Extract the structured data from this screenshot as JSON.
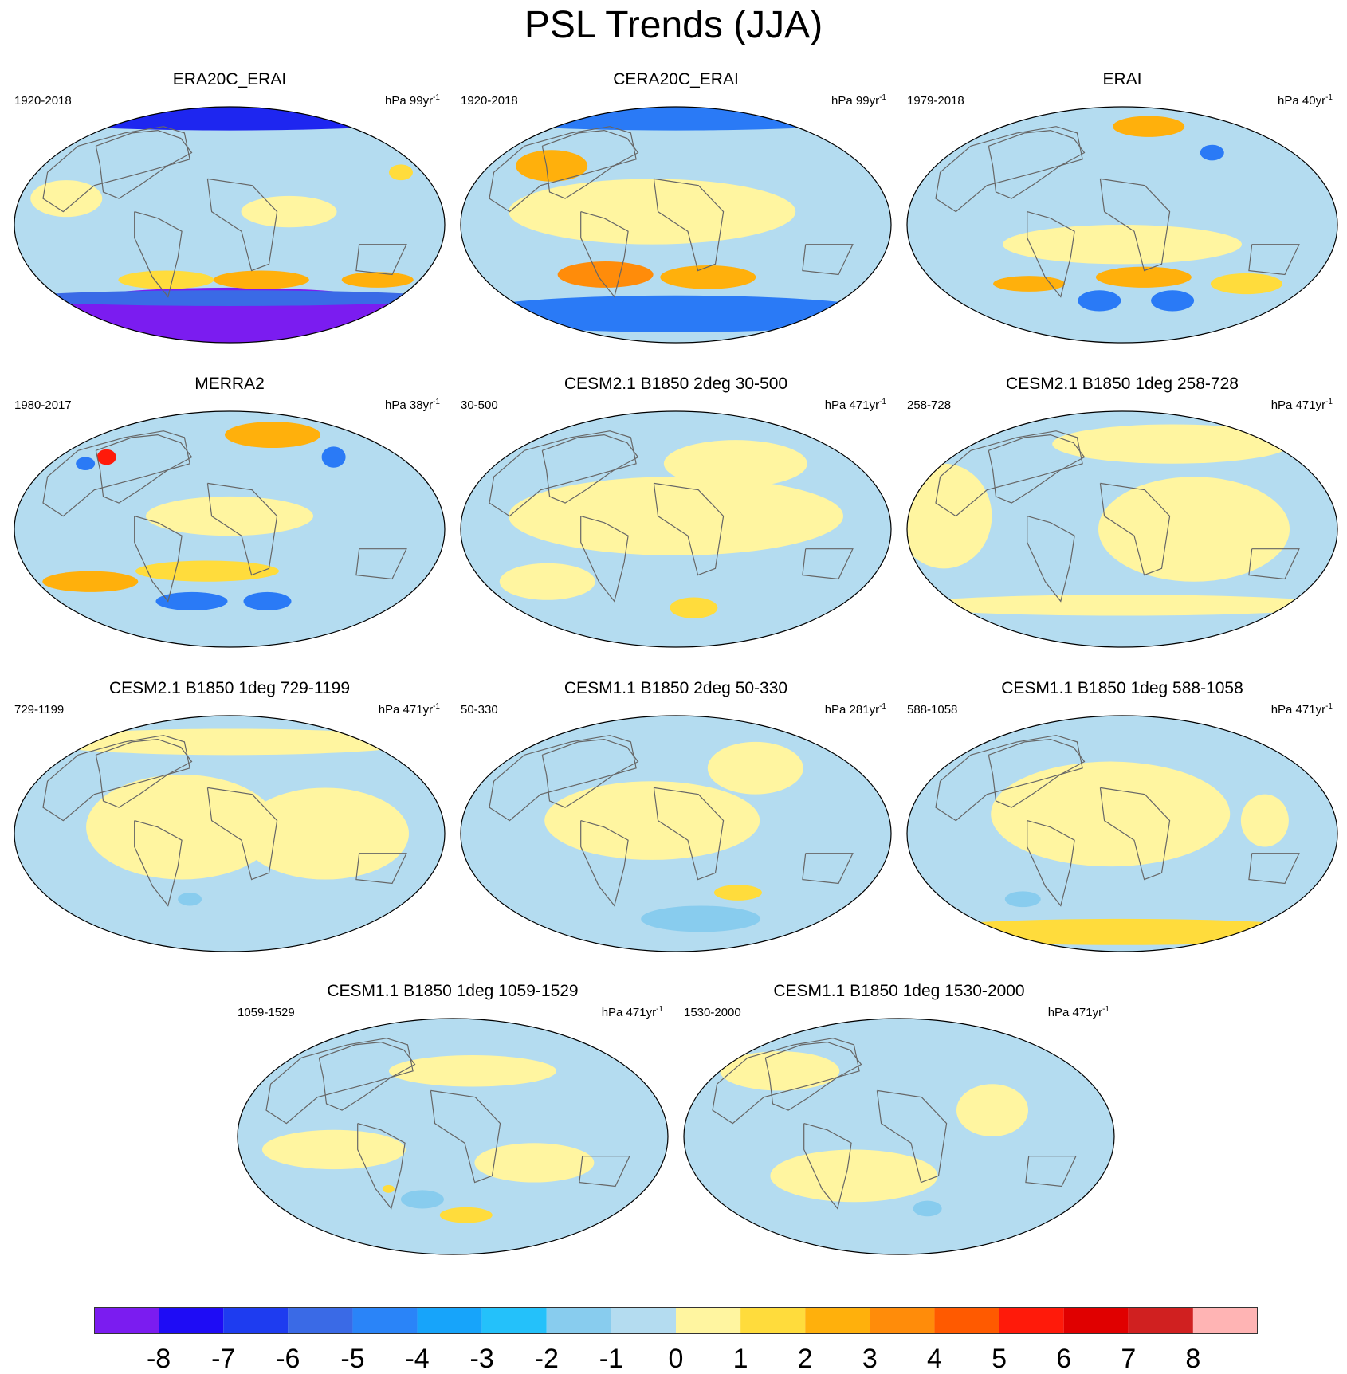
{
  "title": "PSL Trends (JJA)",
  "colors": {
    "ocean_base": "#b4dcf0",
    "continent_line": "#666666",
    "map_border": "#000000"
  },
  "panels": [
    {
      "title": "ERA20C_ERAI",
      "period": "1920-2018",
      "units": "hPa 99yr",
      "exp": "-1",
      "blobs": [
        {
          "lon": 0,
          "lat": 82,
          "rx": 180,
          "ry": 10,
          "color": "#1e26f0"
        },
        {
          "lon": 0,
          "lat": -70,
          "rx": 180,
          "ry": 22,
          "color": "#7b1cf0"
        },
        {
          "lon": 0,
          "lat": -56,
          "rx": 180,
          "ry": 6,
          "color": "#3a6ae6"
        },
        {
          "lon": -60,
          "lat": -42,
          "rx": 40,
          "ry": 7,
          "color": "#ffdc3c"
        },
        {
          "lon": 30,
          "lat": -42,
          "rx": 40,
          "ry": 7,
          "color": "#ffb00c"
        },
        {
          "lon": 140,
          "lat": -42,
          "rx": 30,
          "ry": 6,
          "color": "#ffb00c"
        },
        {
          "lon": -140,
          "lat": 20,
          "rx": 30,
          "ry": 14,
          "color": "#fff5a0"
        },
        {
          "lon": 50,
          "lat": 10,
          "rx": 40,
          "ry": 12,
          "color": "#fff5a0"
        },
        {
          "lon": 160,
          "lat": 40,
          "rx": 10,
          "ry": 6,
          "color": "#ffdc3c"
        }
      ]
    },
    {
      "title": "CERA20C_ERAI",
      "period": "1920-2018",
      "units": "hPa 99yr",
      "exp": "-1",
      "blobs": [
        {
          "lon": 0,
          "lat": 82,
          "rx": 180,
          "ry": 10,
          "color": "#2a7af6"
        },
        {
          "lon": 0,
          "lat": -68,
          "rx": 180,
          "ry": 14,
          "color": "#2a7af6"
        },
        {
          "lon": -65,
          "lat": -38,
          "rx": 40,
          "ry": 10,
          "color": "#ff8c0a"
        },
        {
          "lon": 30,
          "lat": -40,
          "rx": 40,
          "ry": 9,
          "color": "#ffb00c"
        },
        {
          "lon": -20,
          "lat": 10,
          "rx": 120,
          "ry": 25,
          "color": "#fff5a0"
        },
        {
          "lon": -120,
          "lat": 45,
          "rx": 30,
          "ry": 12,
          "color": "#ffb00c"
        }
      ]
    },
    {
      "title": "ERAI",
      "period": "1979-2018",
      "units": "hPa 40yr",
      "exp": "-1",
      "blobs": [
        {
          "lon": 40,
          "lat": 75,
          "rx": 30,
          "ry": 8,
          "color": "#ffb00c"
        },
        {
          "lon": -25,
          "lat": -58,
          "rx": 18,
          "ry": 8,
          "color": "#2a7af6"
        },
        {
          "lon": 55,
          "lat": -58,
          "rx": 18,
          "ry": 8,
          "color": "#2a7af6"
        },
        {
          "lon": 20,
          "lat": -40,
          "rx": 40,
          "ry": 8,
          "color": "#ffb00c"
        },
        {
          "lon": -90,
          "lat": -45,
          "rx": 30,
          "ry": 6,
          "color": "#ffb00c"
        },
        {
          "lon": 120,
          "lat": -45,
          "rx": 30,
          "ry": 8,
          "color": "#ffdc3c"
        },
        {
          "lon": 0,
          "lat": -15,
          "rx": 100,
          "ry": 15,
          "color": "#fff5a0"
        },
        {
          "lon": 95,
          "lat": 55,
          "rx": 10,
          "ry": 6,
          "color": "#2a7af6"
        }
      ]
    },
    {
      "title": "MERRA2",
      "period": "1980-2017",
      "units": "hPa 38yr",
      "exp": "-1",
      "blobs": [
        {
          "lon": 60,
          "lat": 72,
          "rx": 40,
          "ry": 10,
          "color": "#ffb00c"
        },
        {
          "lon": -130,
          "lat": 55,
          "rx": 8,
          "ry": 6,
          "color": "#ff1a0a"
        },
        {
          "lon": -145,
          "lat": 50,
          "rx": 8,
          "ry": 5,
          "color": "#2a7af6"
        },
        {
          "lon": -130,
          "lat": -40,
          "rx": 40,
          "ry": 8,
          "color": "#ffb00c"
        },
        {
          "lon": -40,
          "lat": -55,
          "rx": 30,
          "ry": 7,
          "color": "#2a7af6"
        },
        {
          "lon": 40,
          "lat": -55,
          "rx": 20,
          "ry": 7,
          "color": "#2a7af6"
        },
        {
          "lon": -20,
          "lat": -32,
          "rx": 60,
          "ry": 8,
          "color": "#ffdc3c"
        },
        {
          "lon": 110,
          "lat": 55,
          "rx": 10,
          "ry": 8,
          "color": "#2a7af6"
        },
        {
          "lon": 0,
          "lat": 10,
          "rx": 70,
          "ry": 15,
          "color": "#fff5a0"
        }
      ]
    },
    {
      "title": "CESM2.1 B1850 2deg 30-500",
      "period": "30-500",
      "units": "hPa 471yr",
      "exp": "-1",
      "blobs": [
        {
          "lon": 0,
          "lat": 10,
          "rx": 140,
          "ry": 30,
          "color": "#fff5a0"
        },
        {
          "lon": -120,
          "lat": -40,
          "rx": 40,
          "ry": 14,
          "color": "#fff5a0"
        },
        {
          "lon": 20,
          "lat": -60,
          "rx": 20,
          "ry": 8,
          "color": "#ffdc3c"
        },
        {
          "lon": 60,
          "lat": 50,
          "rx": 60,
          "ry": 18,
          "color": "#fff5a0"
        }
      ]
    },
    {
      "title": "CESM2.1 B1850 1deg 258-728",
      "period": "258-728",
      "units": "hPa 471yr",
      "exp": "-1",
      "blobs": [
        {
          "lon": -150,
          "lat": 10,
          "rx": 40,
          "ry": 40,
          "color": "#fff5a0"
        },
        {
          "lon": 60,
          "lat": 0,
          "rx": 80,
          "ry": 40,
          "color": "#fff5a0"
        },
        {
          "lon": 0,
          "lat": -58,
          "rx": 180,
          "ry": 8,
          "color": "#fff5a0"
        },
        {
          "lon": 60,
          "lat": 65,
          "rx": 100,
          "ry": 15,
          "color": "#fff5a0"
        }
      ]
    },
    {
      "title": "CESM2.1 B1850 1deg 729-1199",
      "period": "729-1199",
      "units": "hPa 471yr",
      "exp": "-1",
      "blobs": [
        {
          "lon": -40,
          "lat": 5,
          "rx": 80,
          "ry": 40,
          "color": "#fff5a0"
        },
        {
          "lon": 80,
          "lat": 0,
          "rx": 70,
          "ry": 35,
          "color": "#fff5a0"
        },
        {
          "lon": -40,
          "lat": -50,
          "rx": 10,
          "ry": 5,
          "color": "#88ccee"
        },
        {
          "lon": 0,
          "lat": 70,
          "rx": 160,
          "ry": 10,
          "color": "#fff5a0"
        }
      ]
    },
    {
      "title": "CESM1.1 B1850 2deg 50-330",
      "period": "50-330",
      "units": "hPa 281yr",
      "exp": "-1",
      "blobs": [
        {
          "lon": -20,
          "lat": 10,
          "rx": 90,
          "ry": 30,
          "color": "#fff5a0"
        },
        {
          "lon": 60,
          "lat": -45,
          "rx": 20,
          "ry": 6,
          "color": "#ffdc3c"
        },
        {
          "lon": 30,
          "lat": -65,
          "rx": 50,
          "ry": 10,
          "color": "#88ccee"
        },
        {
          "lon": 80,
          "lat": 50,
          "rx": 40,
          "ry": 20,
          "color": "#fff5a0"
        }
      ]
    },
    {
      "title": "CESM1.1 B1850 1deg 588-1058",
      "period": "588-1058",
      "units": "hPa 471yr",
      "exp": "-1",
      "blobs": [
        {
          "lon": -10,
          "lat": 15,
          "rx": 100,
          "ry": 40,
          "color": "#fff5a0"
        },
        {
          "lon": 0,
          "lat": -75,
          "rx": 180,
          "ry": 10,
          "color": "#ffdc3c"
        },
        {
          "lon": -100,
          "lat": -50,
          "rx": 15,
          "ry": 6,
          "color": "#88ccee"
        },
        {
          "lon": 120,
          "lat": 10,
          "rx": 20,
          "ry": 20,
          "color": "#fff5a0"
        }
      ]
    },
    {
      "title": "CESM1.1 B1850 1deg 1059-1529",
      "period": "1059-1529",
      "units": "hPa 471yr",
      "exp": "-1",
      "blobs": [
        {
          "lon": -30,
          "lat": -48,
          "rx": 18,
          "ry": 7,
          "color": "#88ccee"
        },
        {
          "lon": 15,
          "lat": -60,
          "rx": 22,
          "ry": 6,
          "color": "#ffdc3c"
        },
        {
          "lon": -60,
          "lat": -40,
          "rx": 5,
          "ry": 3,
          "color": "#ffdc3c"
        },
        {
          "lon": 20,
          "lat": 50,
          "rx": 70,
          "ry": 12,
          "color": "#fff5a0"
        },
        {
          "lon": -100,
          "lat": -10,
          "rx": 60,
          "ry": 15,
          "color": "#fff5a0"
        },
        {
          "lon": 70,
          "lat": -20,
          "rx": 50,
          "ry": 15,
          "color": "#fff5a0"
        }
      ]
    },
    {
      "title": "CESM1.1 B1850 1deg 1530-2000",
      "period": "1530-2000",
      "units": "hPa 471yr",
      "exp": "-1",
      "blobs": [
        {
          "lon": 30,
          "lat": -55,
          "rx": 12,
          "ry": 6,
          "color": "#88ccee"
        },
        {
          "lon": -40,
          "lat": -30,
          "rx": 70,
          "ry": 20,
          "color": "#fff5a0"
        },
        {
          "lon": -120,
          "lat": 50,
          "rx": 50,
          "ry": 15,
          "color": "#fff5a0"
        },
        {
          "lon": 80,
          "lat": 20,
          "rx": 30,
          "ry": 20,
          "color": "#fff5a0"
        }
      ]
    }
  ],
  "colorbar": {
    "colors": [
      "#7b1cf0",
      "#1e0cf5",
      "#1e3cf0",
      "#3a6ae6",
      "#2a84f8",
      "#17a4fa",
      "#24c1fa",
      "#88ccee",
      "#b4dcf0",
      "#fff5a0",
      "#ffdc3c",
      "#ffb00c",
      "#ff8c0a",
      "#ff5a00",
      "#ff1a0a",
      "#e00000",
      "#d02020",
      "#ffb4b4"
    ],
    "labels": [
      "-8",
      "-7",
      "-6",
      "-5",
      "-4",
      "-3",
      "-2",
      "-1",
      "0",
      "1",
      "2",
      "3",
      "4",
      "5",
      "6",
      "7",
      "8"
    ]
  }
}
